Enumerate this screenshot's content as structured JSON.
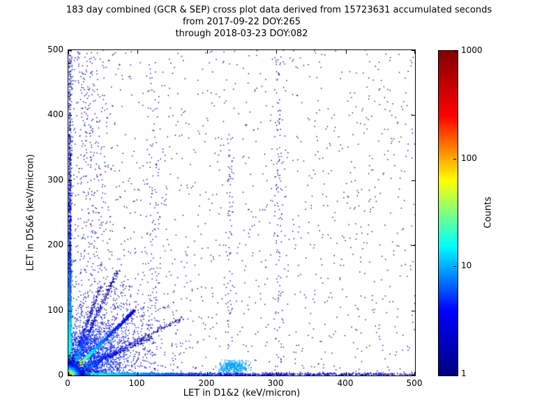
{
  "title": {
    "line1": "183 day combined (GCR & SEP) cross plot data derived from 15723631 accumulated seconds",
    "line2": "from 2017-09-22 DOY:265",
    "line3": "through 2018-03-23 DOY:082"
  },
  "chart_data": {
    "type": "scatter",
    "subtype": "2d-density-cross-plot",
    "title": "183 day combined (GCR & SEP) cross plot data derived from 15723631 accumulated seconds from 2017-09-22 DOY:265 through 2018-03-23 DOY:082",
    "xlabel": "LET in D1&2 (keV/micron)",
    "ylabel": "LET in D5&6 (keV/micron)",
    "xlim": [
      0,
      500
    ],
    "ylim": [
      0,
      500
    ],
    "xticks": [
      0,
      100,
      200,
      300,
      400,
      500
    ],
    "yticks": [
      0,
      100,
      200,
      300,
      400,
      500
    ],
    "grid": false,
    "legend": "none",
    "colorbar": {
      "label": "Counts",
      "scale": "log",
      "min": 1,
      "max": 1000,
      "ticks": [
        1,
        10,
        100,
        1000
      ],
      "colormap": "jet",
      "stops": [
        "#000080",
        "#0000ff",
        "#00ffff",
        "#ffff00",
        "#ff0000",
        "#800000"
      ]
    },
    "density_model": {
      "description": "Counts peak (~1000, dark red) at the origin; bright warm-colored core below ~10 keV/micron; cyan/green diagonal streak y~x out to ~100 with fainter diagonal streaks fanning above and below it; dense blue-cyan bands hugging both axes; diffuse navy scatter concentrated below ~150 keV/micron; sparse single-count points over the full 0-500 range with faint vertical striations near x~120, x~230 and x~300; small cluster near (235,13).",
      "components": [
        {
          "kind": "uniform",
          "n": 1200,
          "l": 0.08
        },
        {
          "kind": "colv",
          "x": 30,
          "sx": 30,
          "ymin": 0,
          "ymax": 500,
          "n": 400,
          "l": 0.15
        },
        {
          "kind": "colv",
          "x": 122,
          "sx": 8,
          "ymin": 0,
          "ymax": 500,
          "n": 90,
          "l": 0.15
        },
        {
          "kind": "colv",
          "x": 232,
          "sx": 5,
          "ymin": 0,
          "ymax": 380,
          "n": 70,
          "l": 0.12
        },
        {
          "kind": "colv",
          "x": 302,
          "sx": 6,
          "ymin": 0,
          "ymax": 495,
          "n": 100,
          "l": 0.12
        },
        {
          "kind": "gauss",
          "cx": 60,
          "cy": 60,
          "sx": 95,
          "sy": 95,
          "n": 900,
          "l": 0.2,
          "abs": true
        },
        {
          "kind": "gauss",
          "cx": 30,
          "cy": 30,
          "sx": 45,
          "sy": 45,
          "n": 1600,
          "l": 0.5,
          "abs": true
        },
        {
          "kind": "colh",
          "y": 2,
          "sy": 2.5,
          "xmin": 0,
          "xmax": 500,
          "n": 260,
          "l": 0.2
        },
        {
          "kind": "colv",
          "x": 2,
          "sx": 2.5,
          "ymin": 0,
          "ymax": 500,
          "n": 300,
          "l": 0.25
        },
        {
          "kind": "expband",
          "axis": "x",
          "pos": 1.5,
          "spread": 1.8,
          "n": 2100,
          "dscale": 150,
          "l0": 1.3
        },
        {
          "kind": "expband",
          "axis": "y",
          "pos": 1.5,
          "spread": 1.8,
          "n": 2300,
          "dscale": 120,
          "l0": 1.5
        },
        {
          "kind": "gauss",
          "cx": 237,
          "cy": 13,
          "sx": 20,
          "sy": 9,
          "n": 380,
          "l": 0.85
        },
        {
          "kind": "streak",
          "x1": 120,
          "y1": 58,
          "w": 2.5,
          "n": 350,
          "bias": 2.2,
          "l0": 1.3,
          "dscale": 45
        },
        {
          "kind": "streak",
          "x1": 165,
          "y1": 88,
          "w": 3.0,
          "n": 450,
          "bias": 2.2,
          "l0": 1.4,
          "dscale": 50
        },
        {
          "kind": "streak",
          "x1": 45,
          "y1": 135,
          "w": 2.2,
          "n": 350,
          "bias": 2.0,
          "l0": 1.5,
          "dscale": 45
        },
        {
          "kind": "streak",
          "x1": 70,
          "y1": 160,
          "w": 2.6,
          "n": 500,
          "bias": 2.0,
          "l0": 1.6,
          "dscale": 50
        },
        {
          "kind": "streak",
          "x1": 95,
          "y1": 100,
          "w": 2.2,
          "n": 1500,
          "bias": 2.0,
          "l0": 2.6,
          "dscale": 55
        },
        {
          "kind": "cross",
          "n": 3800,
          "sx": 5,
          "sy": 5,
          "lmax": 3.1,
          "rscale": 8.5
        }
      ]
    }
  }
}
